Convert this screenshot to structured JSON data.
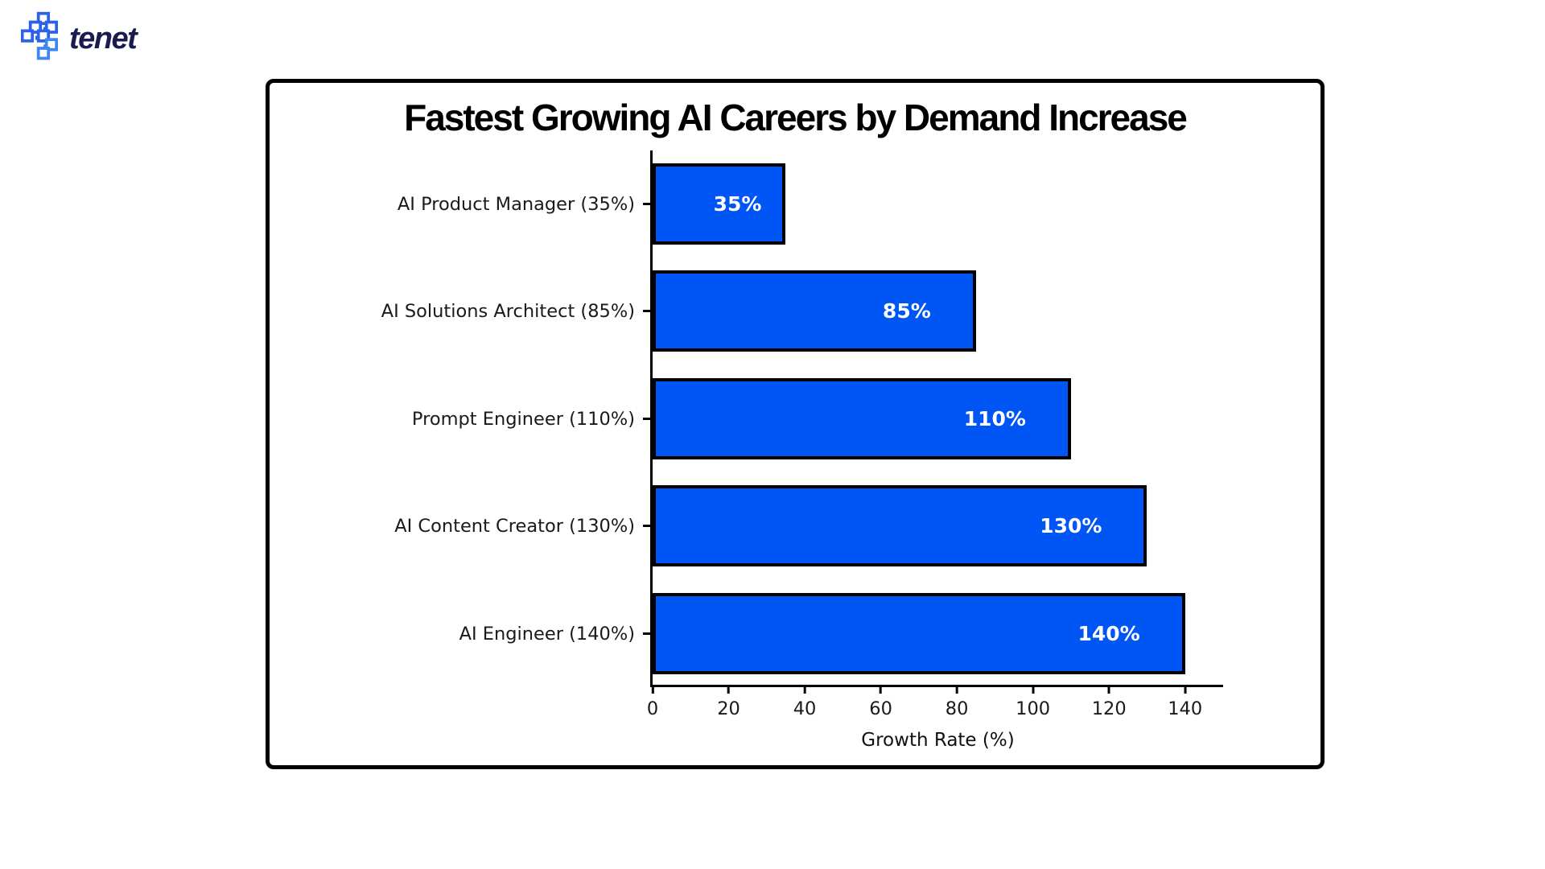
{
  "logo": {
    "brand": "tenet",
    "icon": "tenet-pixel-cross-icon",
    "brand_color": "#1c1b4f",
    "icon_color_dark": "#2b63e8",
    "icon_color_light": "#3f86f2"
  },
  "chart_data": {
    "type": "bar",
    "orientation": "horizontal",
    "title": "Fastest Growing AI Careers by Demand Increase",
    "categories": [
      "AI Product Manager (35%)",
      "AI Solutions Architect (85%)",
      "Prompt Engineer (110%)",
      "AI Content Creator (130%)",
      "AI Engineer (140%)"
    ],
    "values": [
      35,
      85,
      110,
      130,
      140
    ],
    "value_labels": [
      "35%",
      "85%",
      "110%",
      "130%",
      "140%"
    ],
    "xlabel": "Growth Rate (%)",
    "ylabel": "",
    "xlim": [
      0,
      150
    ],
    "xticks": [
      0,
      20,
      40,
      60,
      80,
      100,
      120,
      140
    ],
    "bar_color": "#0056f5",
    "bar_border_color": "#000000",
    "value_label_color": "#ffffff",
    "grid": false,
    "legend": null
  }
}
